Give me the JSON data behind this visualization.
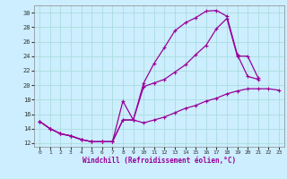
{
  "xlabel": "Windchill (Refroidissement éolien,°C)",
  "background_color": "#cceeff",
  "line_color": "#990099",
  "grid_color": "#aadddd",
  "xlim": [
    -0.5,
    23.5
  ],
  "ylim": [
    11.5,
    31.0
  ],
  "xticks": [
    0,
    1,
    2,
    3,
    4,
    5,
    6,
    7,
    8,
    9,
    10,
    11,
    12,
    13,
    14,
    15,
    16,
    17,
    18,
    19,
    20,
    21,
    22,
    23
  ],
  "yticks": [
    12,
    14,
    16,
    18,
    20,
    22,
    24,
    26,
    28,
    30
  ],
  "curve1_x": [
    0,
    1,
    2,
    3,
    4,
    5,
    6,
    7,
    8,
    9,
    10,
    11,
    12,
    13,
    14,
    15,
    16,
    17,
    18,
    19,
    20,
    21
  ],
  "curve1_y": [
    15,
    14,
    13.3,
    13.0,
    12.5,
    12.2,
    12.2,
    12.2,
    17.8,
    15.2,
    20.3,
    23.0,
    25.2,
    27.5,
    28.6,
    29.3,
    30.2,
    30.3,
    29.5,
    24.2,
    21.2,
    20.8
  ],
  "curve2_x": [
    0,
    1,
    2,
    3,
    4,
    5,
    6,
    7,
    8,
    9,
    10,
    11,
    12,
    13,
    14,
    15,
    16,
    17,
    18,
    19,
    20,
    21
  ],
  "curve2_y": [
    15,
    14,
    13.3,
    13.0,
    12.5,
    12.2,
    12.2,
    12.2,
    15.2,
    15.2,
    19.8,
    20.3,
    20.8,
    21.8,
    22.8,
    24.2,
    25.5,
    27.8,
    29.2,
    24.0,
    24.0,
    21.0
  ],
  "curve3_x": [
    0,
    1,
    2,
    3,
    4,
    5,
    6,
    7,
    8,
    9,
    10,
    11,
    12,
    13,
    14,
    15,
    16,
    17,
    18,
    19,
    20,
    21,
    22,
    23
  ],
  "curve3_y": [
    15,
    14,
    13.3,
    13.0,
    12.5,
    12.2,
    12.2,
    12.2,
    15.2,
    15.2,
    14.8,
    15.2,
    15.6,
    16.2,
    16.8,
    17.2,
    17.8,
    18.2,
    18.8,
    19.2,
    19.5,
    19.5,
    19.5,
    19.3
  ]
}
